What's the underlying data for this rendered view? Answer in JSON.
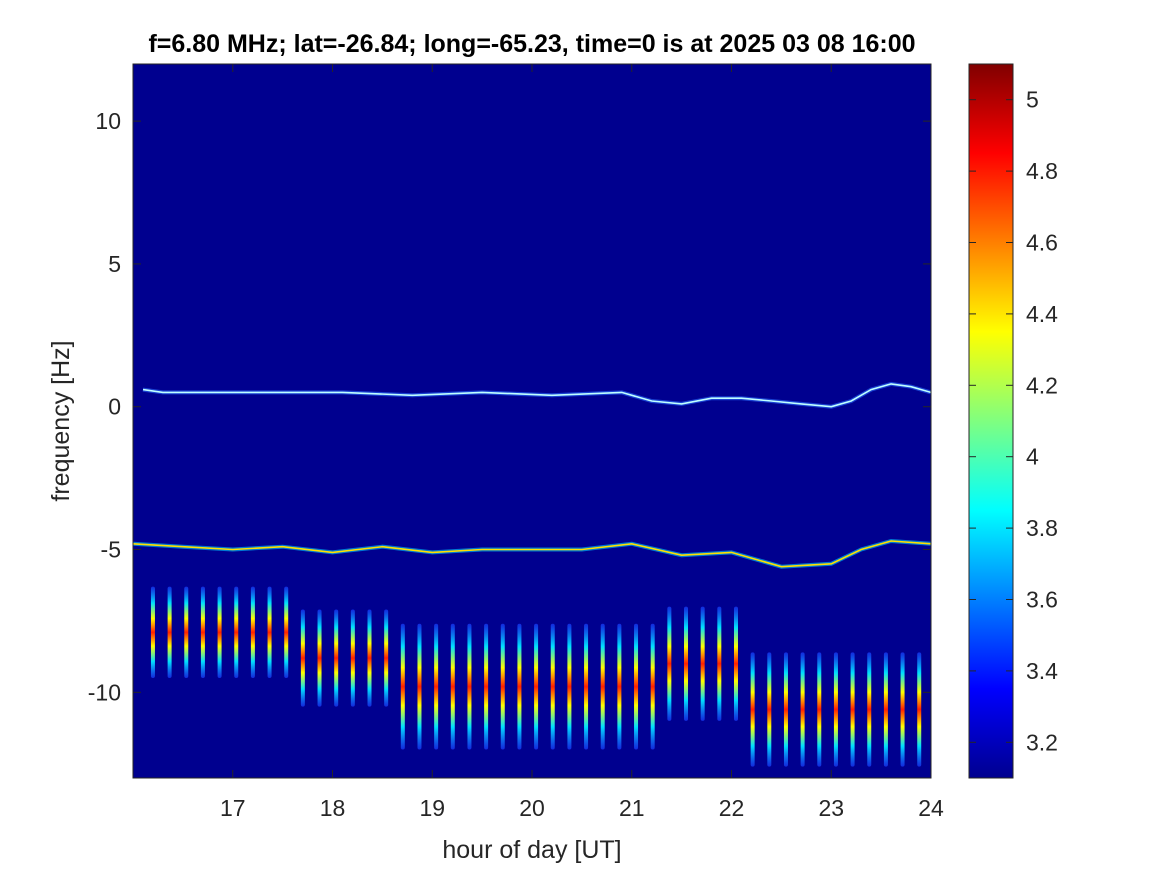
{
  "chart_data": {
    "type": "heatmap",
    "title": "f=6.80 MHz;  lat=-26.84; long=-65.23, time=0 is at 2025 03 08 16:00",
    "xlabel": "hour of day [UT]",
    "ylabel": "frequency [Hz]",
    "xlim": [
      16.0,
      24.0
    ],
    "ylim": [
      -13.0,
      12.0
    ],
    "x_ticks": [
      17,
      18,
      19,
      20,
      21,
      22,
      23,
      24
    ],
    "y_ticks": [
      -10,
      -5,
      0,
      5,
      10
    ],
    "y_tick_labels": [
      "-10",
      "-5",
      "0",
      "5",
      "10"
    ],
    "colorbar": {
      "colormap": "jet",
      "clim": [
        3.1,
        5.1
      ],
      "ticks": [
        3.2,
        3.4,
        3.6,
        3.8,
        4.0,
        4.2,
        4.4,
        4.6,
        4.8,
        5.0
      ],
      "tick_labels": [
        "3.2",
        "3.4",
        "3.6",
        "3.8",
        "4",
        "4.2",
        "4.4",
        "4.6",
        "4.8",
        "5"
      ]
    },
    "features": {
      "upper_trace": {
        "x": [
          16.1,
          16.3,
          18.1,
          18.8,
          19.5,
          20.2,
          20.9,
          21.2,
          21.5,
          21.8,
          22.1,
          22.4,
          22.7,
          23.0,
          23.2,
          23.4,
          23.6,
          23.8,
          24.0
        ],
        "y": [
          0.6,
          0.5,
          0.5,
          0.4,
          0.5,
          0.4,
          0.5,
          0.2,
          0.1,
          0.3,
          0.3,
          0.2,
          0.1,
          0.0,
          0.2,
          0.6,
          0.8,
          0.7,
          0.5
        ]
      },
      "lower_trace": {
        "x": [
          16.0,
          16.5,
          17.0,
          17.5,
          18.0,
          18.5,
          19.0,
          19.5,
          20.0,
          20.5,
          21.0,
          21.5,
          22.0,
          22.5,
          23.0,
          23.3,
          23.6,
          24.0
        ],
        "y": [
          -4.8,
          -4.9,
          -5.0,
          -4.9,
          -5.1,
          -4.9,
          -5.1,
          -5.0,
          -5.0,
          -5.0,
          -4.8,
          -5.2,
          -5.1,
          -5.6,
          -5.5,
          -5.0,
          -4.7,
          -4.8
        ]
      },
      "stripes": {
        "x_start": 16.2,
        "x_step": 0.167,
        "count": 47,
        "segments": [
          {
            "x_from": 16.0,
            "x_to": 17.7,
            "y_center": -7.9,
            "y_half_length": 1.6
          },
          {
            "x_from": 17.7,
            "x_to": 18.7,
            "y_center": -8.8,
            "y_half_length": 1.7
          },
          {
            "x_from": 18.7,
            "x_to": 21.3,
            "y_center": -9.8,
            "y_half_length": 2.2
          },
          {
            "x_from": 21.3,
            "x_to": 22.2,
            "y_center": -9.0,
            "y_half_length": 2.0
          },
          {
            "x_from": 22.2,
            "x_to": 24.0,
            "y_center": -10.6,
            "y_half_length": 2.0
          }
        ]
      }
    }
  }
}
